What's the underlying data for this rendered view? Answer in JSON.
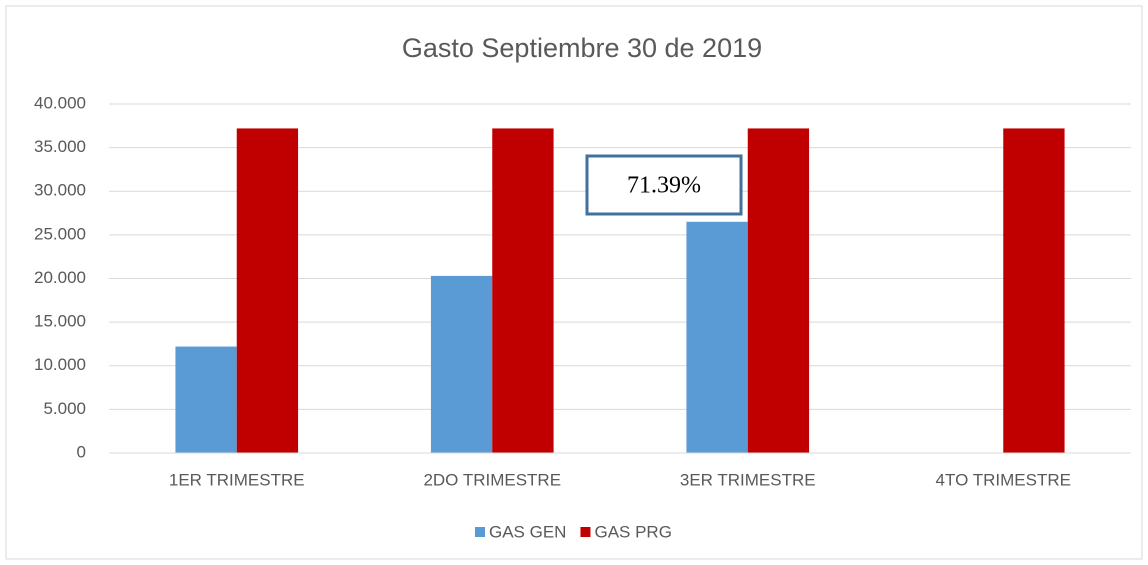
{
  "chart_data": {
    "type": "bar",
    "title": "Gasto Septiembre 30 de 2019",
    "categories": [
      "1ER TRIMESTRE",
      "2DO TRIMESTRE",
      "3ER TRIMESTRE",
      "4TO TRIMESTRE"
    ],
    "series": [
      {
        "name": "GAS GEN",
        "color": "#5b9bd5",
        "values": [
          12200,
          20300,
          26500,
          null
        ]
      },
      {
        "name": "GAS PRG",
        "color": "#c00000",
        "values": [
          37200,
          37200,
          37200,
          37200
        ]
      }
    ],
    "ylim": [
      0,
      40000
    ],
    "yticks": [
      0,
      {
        "value": 5000,
        "label": "5.000"
      },
      {
        "value": 10000,
        "label": "10.000"
      },
      {
        "value": 15000,
        "label": "15.000"
      },
      {
        "value": 20000,
        "label": "20.000"
      },
      {
        "value": 25000,
        "label": "25.000"
      },
      {
        "value": 30000,
        "label": "30.000"
      },
      {
        "value": 35000,
        "label": "35.000"
      },
      {
        "value": 40000,
        "label": "40.000"
      }
    ],
    "grid": true,
    "legend": "bottom",
    "annotations": [
      "71.39%"
    ]
  }
}
